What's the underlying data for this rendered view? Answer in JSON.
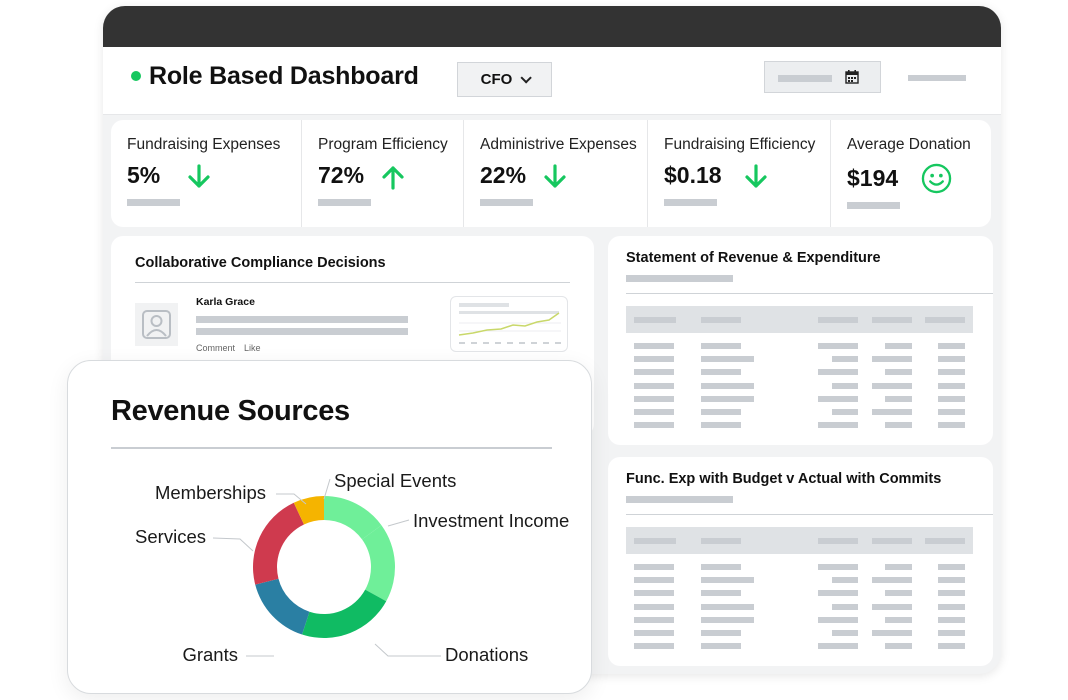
{
  "header": {
    "title": "Role Based Dashboard",
    "role_selector": {
      "selected": "CFO"
    },
    "icons": {
      "date": "calendar-icon",
      "dropdown": "chevron-down-icon",
      "status": "status-dot"
    }
  },
  "kpis": [
    {
      "label": "Fundraising Expenses",
      "value": "5%",
      "trend": "down",
      "icon": "arrow-down-icon"
    },
    {
      "label": "Program Efficiency",
      "value": "72%",
      "trend": "up",
      "icon": "arrow-up-icon"
    },
    {
      "label": "Administrive Expenses",
      "value": "22%",
      "trend": "down",
      "icon": "arrow-down-icon"
    },
    {
      "label": "Fundraising Efficiency",
      "value": "$0.18",
      "trend": "down",
      "icon": "arrow-down-icon"
    },
    {
      "label": "Average Donation",
      "value": "$194",
      "trend": "smile",
      "icon": "smiley-icon"
    }
  ],
  "colors": {
    "accent_green": "#16c75f",
    "titlebar": "#333333",
    "placeholder": "#c9cdd2"
  },
  "compliance": {
    "title": "Collaborative Compliance Decisions",
    "comment": {
      "author": "Karla Grace",
      "actions": [
        "Comment",
        "Like"
      ]
    }
  },
  "statement": {
    "title": "Statement of Revenue & Expenditure"
  },
  "func_exp": {
    "title": "Func. Exp with Budget v Actual with Commits"
  },
  "revenue_sources": {
    "title": "Revenue Sources",
    "chart_data": {
      "type": "pie",
      "variant": "donut",
      "categories": [
        "Special Events",
        "Investment Income",
        "Donations",
        "Grants",
        "Services",
        "Memberships"
      ],
      "values": [
        15,
        18,
        22,
        16,
        22,
        7
      ],
      "colors": [
        "#6fef99",
        "#6fef99",
        "#10bb63",
        "#2a7fa3",
        "#cf3a4e",
        "#f5b400"
      ],
      "legend": "callout-labels"
    }
  }
}
